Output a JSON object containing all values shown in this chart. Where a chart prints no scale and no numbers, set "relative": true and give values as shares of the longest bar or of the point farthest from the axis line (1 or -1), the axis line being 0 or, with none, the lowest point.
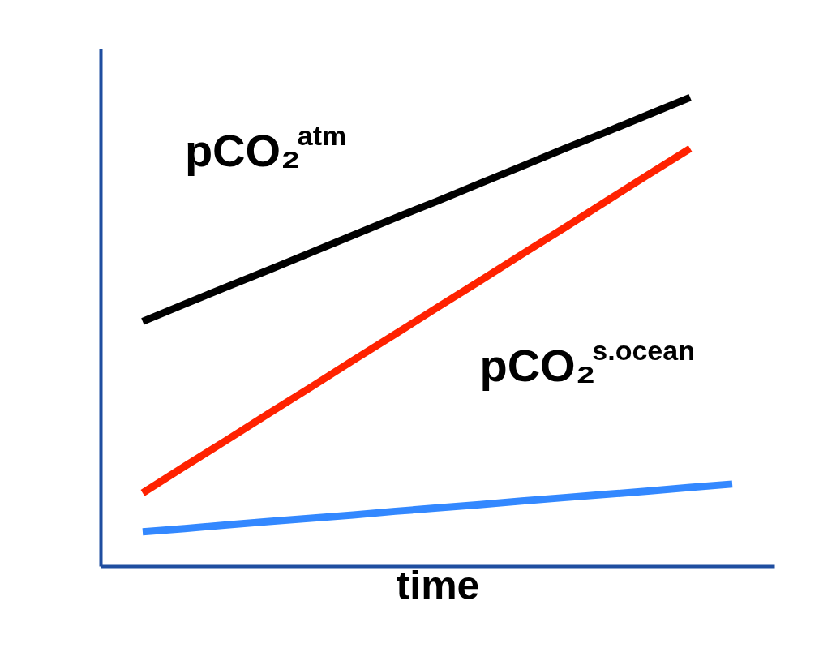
{
  "chart_data": {
    "type": "line",
    "xlabel": "time",
    "relative": true,
    "tick_labels": false,
    "grid": false,
    "marker": "none",
    "categories": [
      null,
      null,
      null,
      null,
      null,
      null,
      null,
      null,
      null,
      null,
      null,
      null,
      null,
      null,
      null
    ],
    "series": [
      {
        "name": "pCO₂$^{atm}$",
        "color": "#000000",
        "values": [
          0.522,
          0.559,
          0.596,
          0.632,
          0.669,
          0.706,
          0.743,
          0.779,
          0.816,
          0.853,
          0.89,
          0.926,
          0.963,
          1.0,
          null
        ]
      },
      {
        "name": "pCO₂$^{s.ocean}$",
        "color": "#ff2200",
        "values": [
          0.156,
          0.213,
          0.269,
          0.326,
          0.382,
          0.439,
          0.495,
          0.552,
          0.608,
          0.665,
          0.721,
          0.778,
          0.835,
          0.891,
          null
        ]
      },
      {
        "color": "#3388ff",
        "values": [
          0.073,
          0.08,
          0.088,
          0.095,
          0.102,
          0.109,
          0.117,
          0.124,
          0.131,
          0.139,
          0.146,
          0.153,
          0.16,
          0.168,
          0.175
        ]
      }
    ]
  }
}
